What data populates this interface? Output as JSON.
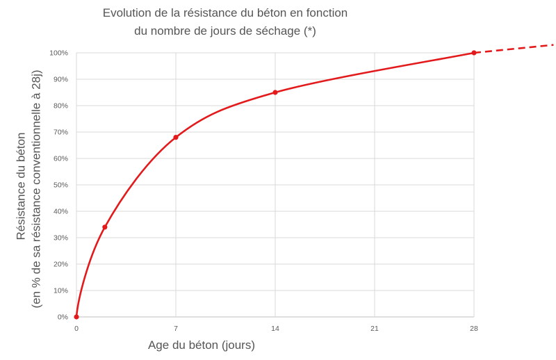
{
  "chart_data": {
    "type": "line",
    "title": "Evolution de la résistance du béton en fonction",
    "subtitle": "du nombre de jours de séchage (*)",
    "xlabel": "Age du béton (jours)",
    "ylabel": "Résistance du béton",
    "ylabel_sub": "(en % de sa résistance  conventionnelle à 28j)",
    "x_ticks": [
      0,
      7,
      14,
      21,
      28
    ],
    "y_ticks": [
      "0%",
      "10%",
      "20%",
      "30%",
      "40%",
      "50%",
      "60%",
      "70%",
      "80%",
      "90%",
      "100%"
    ],
    "xlim": [
      0,
      28
    ],
    "ylim": [
      0,
      100
    ],
    "grid": true,
    "series": [
      {
        "color": "#e31a1c",
        "points": [
          {
            "x": 0,
            "y": 0
          },
          {
            "x": 2,
            "y": 34
          },
          {
            "x": 7,
            "y": 68
          },
          {
            "x": 14,
            "y": 85
          },
          {
            "x": 28,
            "y": 100
          }
        ],
        "extrapolation": {
          "x": 33.6,
          "y": 103,
          "style": "dashed"
        }
      }
    ]
  }
}
